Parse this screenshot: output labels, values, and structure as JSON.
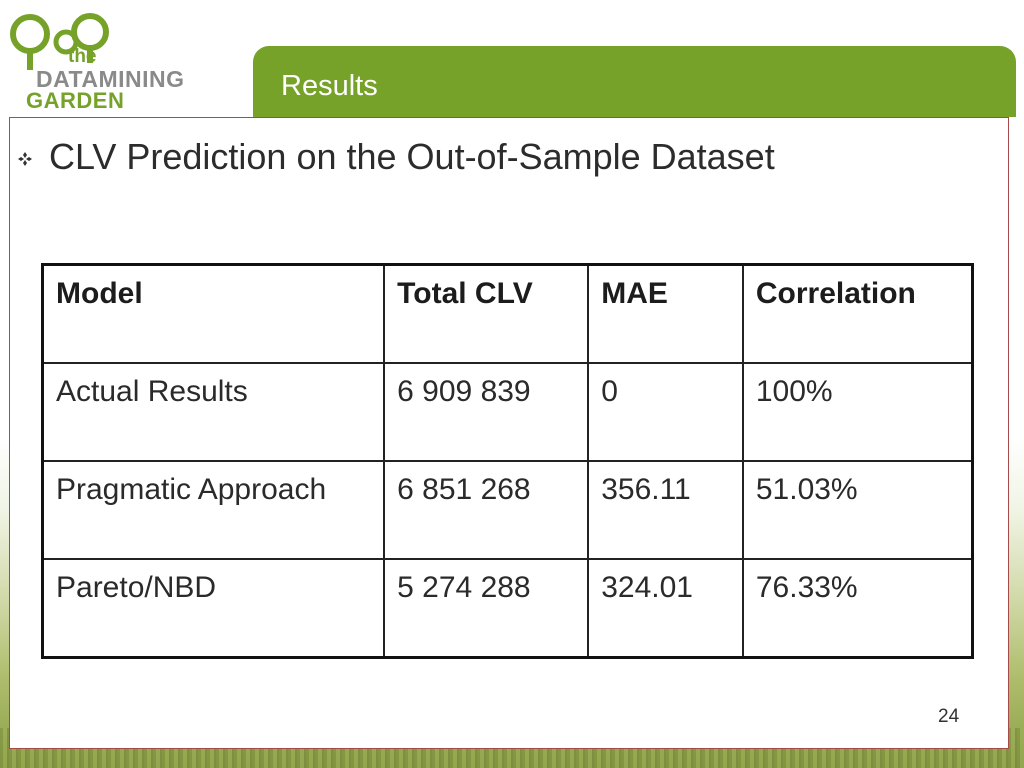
{
  "logo": {
    "line1": "the",
    "line2": "DATAMINING",
    "line3": "GARDEN"
  },
  "slide": {
    "title": "Results",
    "page_number": "24"
  },
  "bullet": {
    "text": "CLV Prediction on the Out-of-Sample Dataset",
    "icon": "diamond-bullet-icon"
  },
  "table": {
    "headers": [
      "Model",
      "Total CLV",
      "MAE",
      "Correlation"
    ],
    "rows": [
      [
        "Actual Results",
        "6 909 839",
        "0",
        "100%"
      ],
      [
        "Pragmatic Approach",
        "6 851 268",
        "356.11",
        "51.03%"
      ],
      [
        "Pareto/NBD",
        "5 274 288",
        "324.01",
        "76.33%"
      ]
    ]
  },
  "colors": {
    "accent": "#76a22a",
    "frame": "#a94a4a",
    "logo_grey": "#8a8a8a"
  }
}
